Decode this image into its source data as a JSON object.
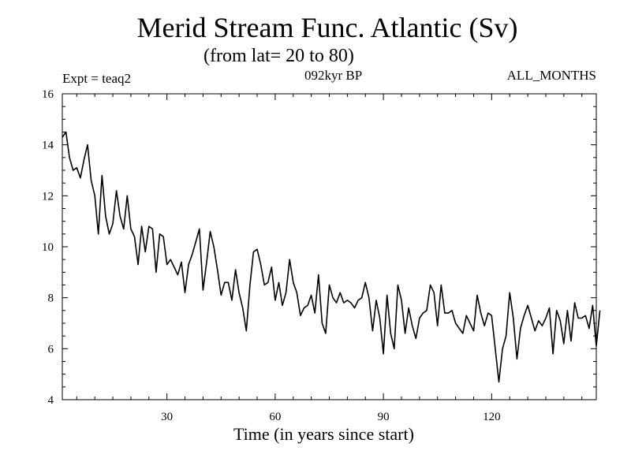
{
  "chart_data": {
    "type": "line",
    "title": "Merid Stream Func. Atlantic (Sv)",
    "subtitle": "(from lat= 20 to 80)",
    "annotations": {
      "experiment": "Expt = teaq2",
      "period": "092kyr BP",
      "months": "ALL_MONTHS"
    },
    "xlabel": "Time (in years since start)",
    "ylabel": "",
    "xlim": [
      1,
      149
    ],
    "ylim": [
      4,
      16
    ],
    "xticks": [
      30,
      60,
      90,
      120
    ],
    "yticks": [
      4,
      6,
      8,
      10,
      12,
      14,
      16
    ],
    "grid": false,
    "series": [
      {
        "name": "Merid Stream Func. Atlantic",
        "color": "#000000",
        "x_start": 1,
        "x_step": 1,
        "values": [
          14.3,
          14.5,
          13.5,
          13.0,
          13.1,
          12.7,
          13.4,
          14.0,
          12.6,
          12.0,
          10.5,
          12.8,
          11.2,
          10.5,
          10.9,
          12.2,
          11.2,
          10.7,
          12.0,
          10.7,
          10.4,
          9.3,
          10.8,
          9.8,
          10.8,
          10.7,
          9.0,
          10.5,
          10.4,
          9.3,
          9.5,
          9.2,
          8.9,
          9.4,
          8.2,
          9.3,
          9.7,
          10.2,
          10.7,
          8.3,
          9.4,
          10.6,
          10.0,
          9.1,
          8.1,
          8.6,
          8.6,
          7.9,
          9.1,
          8.2,
          7.6,
          6.7,
          8.5,
          9.8,
          9.9,
          9.3,
          8.5,
          8.6,
          9.2,
          7.9,
          8.6,
          7.7,
          8.2,
          9.5,
          8.6,
          8.2,
          7.3,
          7.6,
          7.7,
          8.1,
          7.4,
          8.9,
          7.0,
          6.6,
          8.5,
          8.0,
          7.8,
          8.2,
          7.8,
          7.9,
          7.8,
          7.6,
          7.9,
          8.0,
          8.6,
          8.0,
          6.7,
          7.9,
          7.2,
          5.8,
          8.1,
          6.6,
          6.0,
          8.5,
          7.9,
          6.6,
          7.6,
          6.9,
          6.4,
          7.2,
          7.4,
          7.5,
          8.5,
          8.2,
          6.9,
          8.5,
          7.4,
          7.4,
          7.5,
          7.0,
          6.8,
          6.6,
          7.3,
          7.0,
          6.7,
          8.1,
          7.4,
          6.9,
          7.4,
          7.3,
          6.0,
          4.7,
          6.0,
          6.5,
          8.2,
          7.2,
          5.6,
          6.8,
          7.3,
          7.7,
          7.2,
          6.7,
          7.1,
          6.9,
          7.2,
          7.6,
          5.8,
          7.5,
          7.1,
          6.2,
          7.5,
          6.3,
          7.8,
          7.2,
          7.2,
          7.3,
          6.8,
          7.7,
          6.1,
          7.5
        ]
      }
    ]
  }
}
